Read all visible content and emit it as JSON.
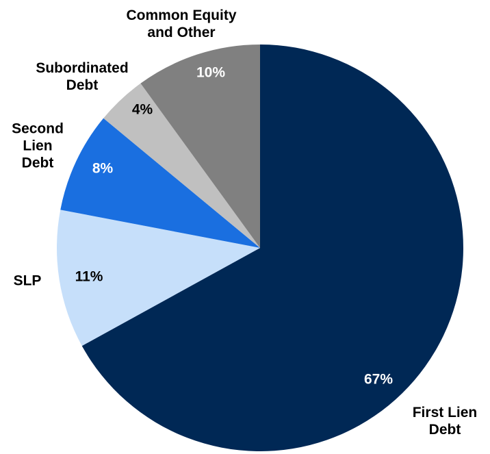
{
  "chart_data": {
    "type": "pie",
    "categories": [
      "First Lien Debt",
      "SLP",
      "Second Lien Debt",
      "Subordinated Debt",
      "Common Equity and Other"
    ],
    "values": [
      67,
      11,
      8,
      4,
      10
    ],
    "value_labels": [
      "67%",
      "11%",
      "8%",
      "4%",
      "10%"
    ],
    "colors": [
      "#002855",
      "#c6dffa",
      "#1a6fe0",
      "#c0c0c0",
      "#808080"
    ],
    "label_colors": [
      "#ffffff",
      "#000000",
      "#ffffff",
      "#000000",
      "#ffffff"
    ],
    "start_angle": 90,
    "direction": "clockwise"
  }
}
